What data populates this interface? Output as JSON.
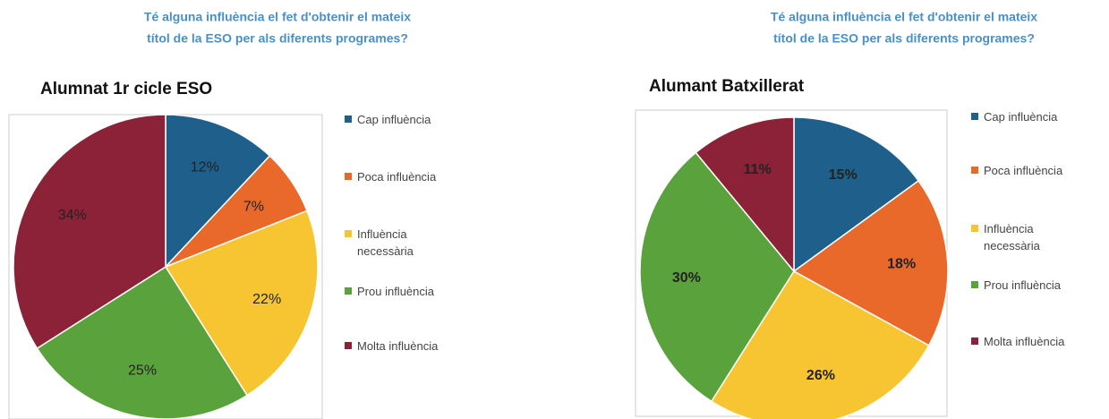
{
  "chart_data": [
    {
      "type": "pie",
      "title": [
        "Té alguna influència el fet d'obtenir el mateix",
        "títol de la ESO  per als diferents programes?"
      ],
      "subtitle": "Alumnat 1r cicle ESO",
      "categories": [
        "Cap influència",
        "Poca influència",
        "Influència necessària",
        "Prou influència",
        "Molta influència"
      ],
      "values": [
        12,
        7,
        22,
        25,
        34
      ],
      "value_labels": [
        "12%",
        "7%",
        "22%",
        "25%",
        "34%"
      ],
      "colors": [
        "#1f5f8b",
        "#e8692a",
        "#f7c531",
        "#5aa23c",
        "#8b2238"
      ]
    },
    {
      "type": "pie",
      "title": [
        "Té alguna influència el fet d'obtenir el mateix",
        "títol de la ESO  per als diferents programes?"
      ],
      "subtitle": "Alumant Batxillerat",
      "categories": [
        "Cap influència",
        "Poca influència",
        "Influència necessària",
        "Prou influència",
        "Molta influència"
      ],
      "values": [
        15,
        18,
        26,
        30,
        11
      ],
      "value_labels": [
        "15%",
        "18%",
        "26%",
        "30%",
        "11%"
      ],
      "colors": [
        "#1f5f8b",
        "#e8692a",
        "#f7c531",
        "#5aa23c",
        "#8b2238"
      ]
    }
  ]
}
